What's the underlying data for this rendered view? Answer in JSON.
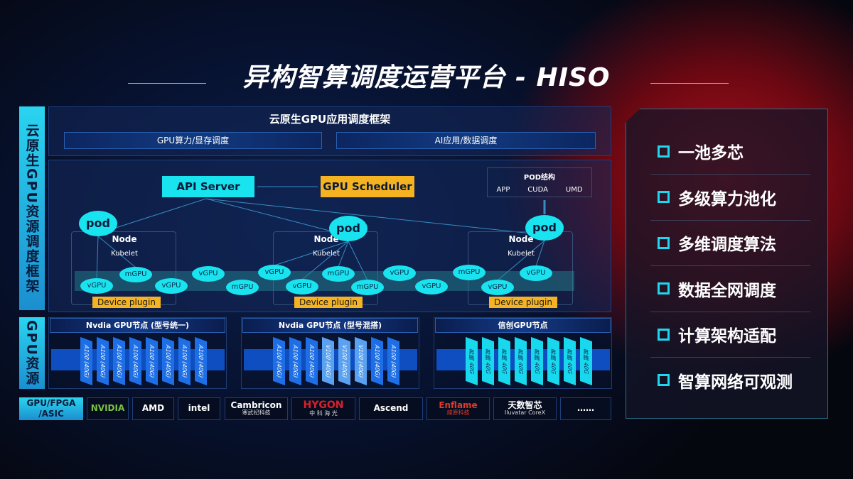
{
  "title": "异构智算调度运营平台 - HISO",
  "side_labels": {
    "framework": "云原生GPU资源调度框架",
    "resources": "GPU资源"
  },
  "framework": {
    "title": "云原生GPU应用调度框架",
    "bars": [
      "GPU算力/显存调度",
      "AI应用/数据调度"
    ]
  },
  "diagram": {
    "api_server": "API Server",
    "gpu_scheduler": "GPU Scheduler",
    "pod_structure": {
      "title": "POD结构",
      "items": [
        "APP",
        "CUDA",
        "UMD"
      ]
    },
    "pod_label": "pod",
    "node_label": "Node",
    "kubelet_label": "Kubelet",
    "device_plugin": "Device plugin",
    "gpus": [
      "vGPU",
      "mGPU",
      "vGPU",
      "vGPU",
      "mGPU",
      "vGPU",
      "mGPU",
      "vGPU",
      "mGPU",
      "vGPU",
      "vGPU",
      "mGPU",
      "vGPU",
      "vGPU"
    ]
  },
  "gpu_nodes": [
    {
      "title": "Nvdia GPU节点 (型号统一)",
      "chips": [
        "A100 (40G)",
        "A100 (40G)",
        "A100 (40G)",
        "A100 (40G)",
        "A100 (40G)",
        "A100 (40G)",
        "A100 (40G)",
        "A100 (40G)"
      ]
    },
    {
      "title": "Nvdia GPU节点 (型号混搭)",
      "chips": [
        "A100 (40G)",
        "A100 (40G)",
        "A100 (40G)",
        "V100 (40G)",
        "V100 (40G)",
        "V100 (40G)",
        "A100 (40G)",
        "A100 (40G)"
      ]
    },
    {
      "title": "信创GPU节点",
      "chips": [
        "昇腾 40G",
        "昇腾 40G",
        "昇腾 40G",
        "昇腾 40G",
        "昇腾 40G",
        "昇腾 40G",
        "昇腾 40G",
        "昇腾 40G"
      ]
    }
  ],
  "vendors": {
    "label": "GPU/FPGA /ASIC",
    "items": [
      {
        "name": "NVIDIA",
        "sub": ""
      },
      {
        "name": "AMD",
        "sub": ""
      },
      {
        "name": "intel",
        "sub": ""
      },
      {
        "name": "Cambricon",
        "sub": "寒武纪科技"
      },
      {
        "name": "HYGON",
        "sub": "中 科 海 光"
      },
      {
        "name": "Ascend",
        "sub": ""
      },
      {
        "name": "Enflame",
        "sub": "燧原科技"
      },
      {
        "name": "天数智芯",
        "sub": "Iluvatar CoreX"
      },
      {
        "name": "……",
        "sub": ""
      }
    ]
  },
  "features": [
    "一池多芯",
    "多级算力池化",
    "多维调度算法",
    "数据全网调度",
    "计算架构适配",
    "智算网络可观测"
  ],
  "colors": {
    "accent": "#19e3ee",
    "orange": "#f5b321",
    "red_glow": "#b0101c"
  }
}
